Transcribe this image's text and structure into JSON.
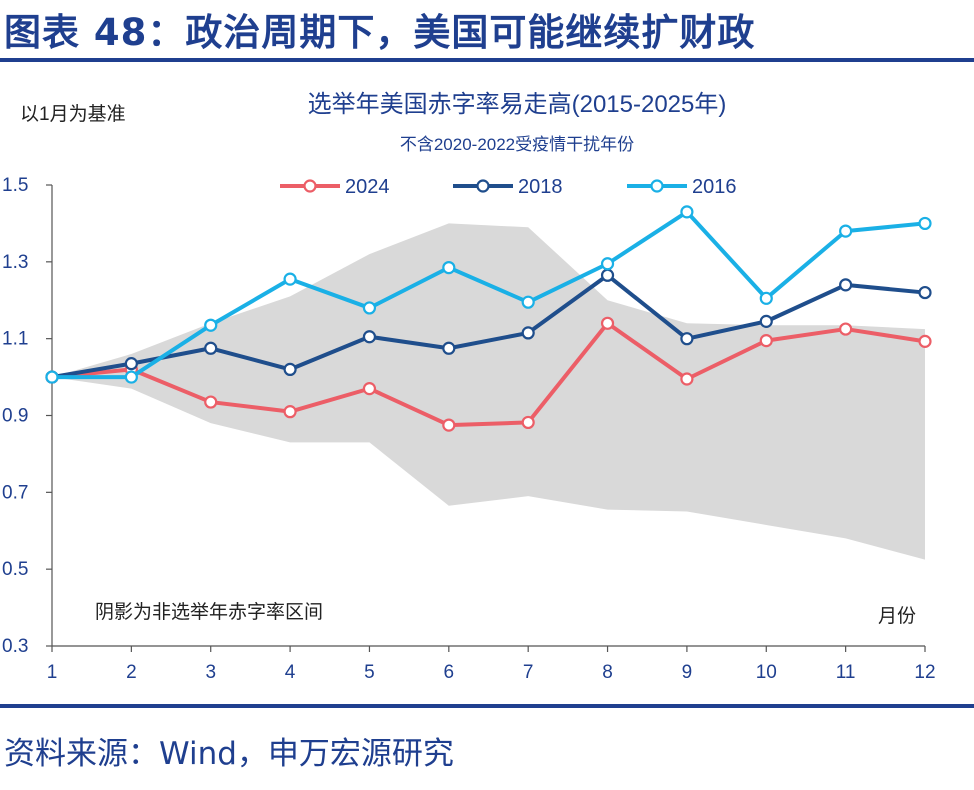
{
  "figure_title": "图表 48：政治周期下，美国可能继续扩财政",
  "source": "资料来源：Wind，申万宏源研究",
  "chart_data": {
    "type": "line",
    "title": "选举年美国赤字率易走高(2015-2025年)",
    "subtitle": "不含2020-2022受疫情干扰年份",
    "ylabel": "以1月为基准",
    "xlabel": "月份",
    "band_label": "阴影为非选举年赤字率区间",
    "x": [
      1,
      2,
      3,
      4,
      5,
      6,
      7,
      8,
      9,
      10,
      11,
      12
    ],
    "x_tick_labels": [
      "1",
      "2",
      "3",
      "4",
      "5",
      "6",
      "7",
      "8",
      "9",
      "10",
      "11",
      "12"
    ],
    "ylim": [
      0.3,
      1.5
    ],
    "y_ticks": [
      1.5,
      1.3,
      1.1,
      0.9,
      0.7,
      0.5,
      0.3
    ],
    "y_tick_labels": [
      "1.5",
      "1.3",
      "1.1",
      "0.9",
      "0.7",
      "0.5",
      "0.3"
    ],
    "legend_position": "top",
    "series": [
      {
        "name": "2024",
        "color": "#ec5e67",
        "values": [
          1.0,
          1.02,
          0.935,
          0.91,
          0.97,
          0.875,
          0.882,
          1.14,
          0.995,
          1.095,
          1.125,
          1.093
        ]
      },
      {
        "name": "2018",
        "color": "#1f4e8c",
        "values": [
          1.0,
          1.035,
          1.075,
          1.02,
          1.105,
          1.075,
          1.115,
          1.265,
          1.1,
          1.145,
          1.24,
          1.22
        ]
      },
      {
        "name": "2016",
        "color": "#1ab0e6",
        "values": [
          1.0,
          1.0,
          1.135,
          1.255,
          1.18,
          1.285,
          1.195,
          1.295,
          1.43,
          1.205,
          1.38,
          1.4
        ]
      }
    ],
    "band": {
      "name": "非选举年赤字率区间",
      "color": "#d9d9d9",
      "upper": [
        1.0,
        1.06,
        1.14,
        1.21,
        1.32,
        1.4,
        1.39,
        1.2,
        1.14,
        1.135,
        1.135,
        1.125
      ],
      "lower": [
        1.0,
        0.97,
        0.88,
        0.83,
        0.83,
        0.665,
        0.69,
        0.655,
        0.65,
        0.615,
        0.58,
        0.525
      ]
    }
  }
}
